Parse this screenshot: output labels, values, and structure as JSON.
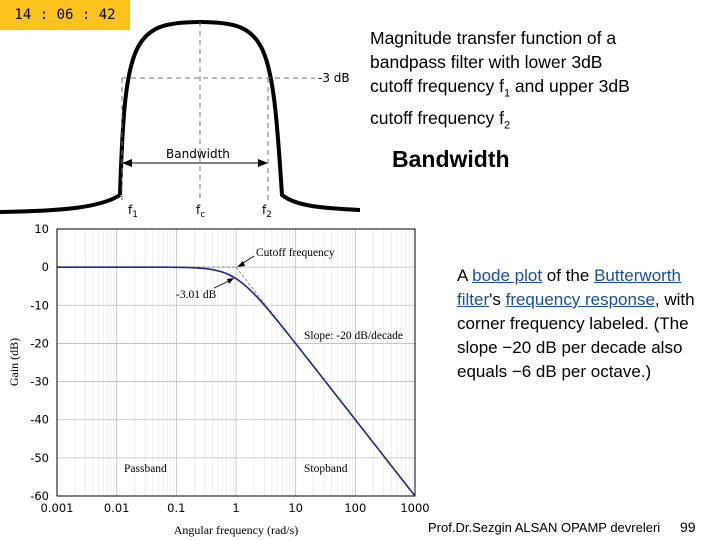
{
  "clock": {
    "time": "14 : 06 : 42"
  },
  "caption_top": {
    "line1": "Magnitude transfer function of a",
    "line2": "bandpass filter with lower 3dB",
    "line3_pre": "cutoff frequency f",
    "line3_sub": "1",
    "line3_post": " and upper 3dB",
    "line4_pre": "cutoff frequency f",
    "line4_sub": "2"
  },
  "bandwidth_heading": "Bandwidth",
  "caption_bottom": {
    "pre": "A ",
    "link1": "bode plot",
    "mid1": " of the ",
    "link2": "Butterworth filter",
    "mid2": "'s ",
    "link3": "frequency response",
    "post": ", with corner frequency labeled. (The slope −20 dB per decade also equals −6 dB per octave.)"
  },
  "footer": "Prof.Dr.Sezgin ALSAN  OPAMP devreleri",
  "page_number": "99",
  "colors": {
    "clock_bg": "#fbc31c",
    "link": "#1a4fa0"
  },
  "chart_data": [
    {
      "type": "line",
      "description_labels": {
        "minus3db": "-3 dB",
        "bandwidth": "Bandwidth",
        "f1": "f",
        "f1_sub": "1",
        "fc": "f",
        "fc_sub": "c",
        "f2": "f",
        "f2_sub": "2"
      }
    },
    {
      "type": "line",
      "xscale": "log",
      "xlim": [
        0.001,
        1000
      ],
      "ylim": [
        -60,
        10
      ],
      "xlabel": "Angular frequency (rad/s)",
      "ylabel": "Gain (dB)",
      "x_ticks": [
        "0.001",
        "0.01",
        "0.1",
        "1",
        "10",
        "100",
        "1000"
      ],
      "y_ticks": [
        "10",
        "0",
        "-10",
        "-20",
        "-30",
        "-40",
        "-50",
        "-60"
      ],
      "grid": true,
      "series": [
        {
          "x": [
            0.001,
            0.01,
            0.1,
            0.3,
            0.5,
            0.7,
            1,
            1.5,
            2,
            3,
            5,
            10,
            100,
            1000
          ],
          "y": [
            0,
            0,
            -0.04,
            -0.38,
            -0.97,
            -1.73,
            -3.01,
            -5.12,
            -6.99,
            -10.0,
            -14.15,
            -20.04,
            -40.0,
            -60.0
          ]
        }
      ],
      "asymptotes": [
        {
          "x": [
            0.001,
            1
          ],
          "y": [
            0,
            0
          ]
        },
        {
          "x": [
            1,
            1000
          ],
          "y": [
            0,
            -60
          ]
        }
      ],
      "annotations": {
        "cutoff": "Cutoff frequency",
        "minus301": "-3.01 dB",
        "slope": "Slope: -20 dB/decade",
        "passband": "Passband",
        "stopband": "Stopband"
      }
    }
  ]
}
